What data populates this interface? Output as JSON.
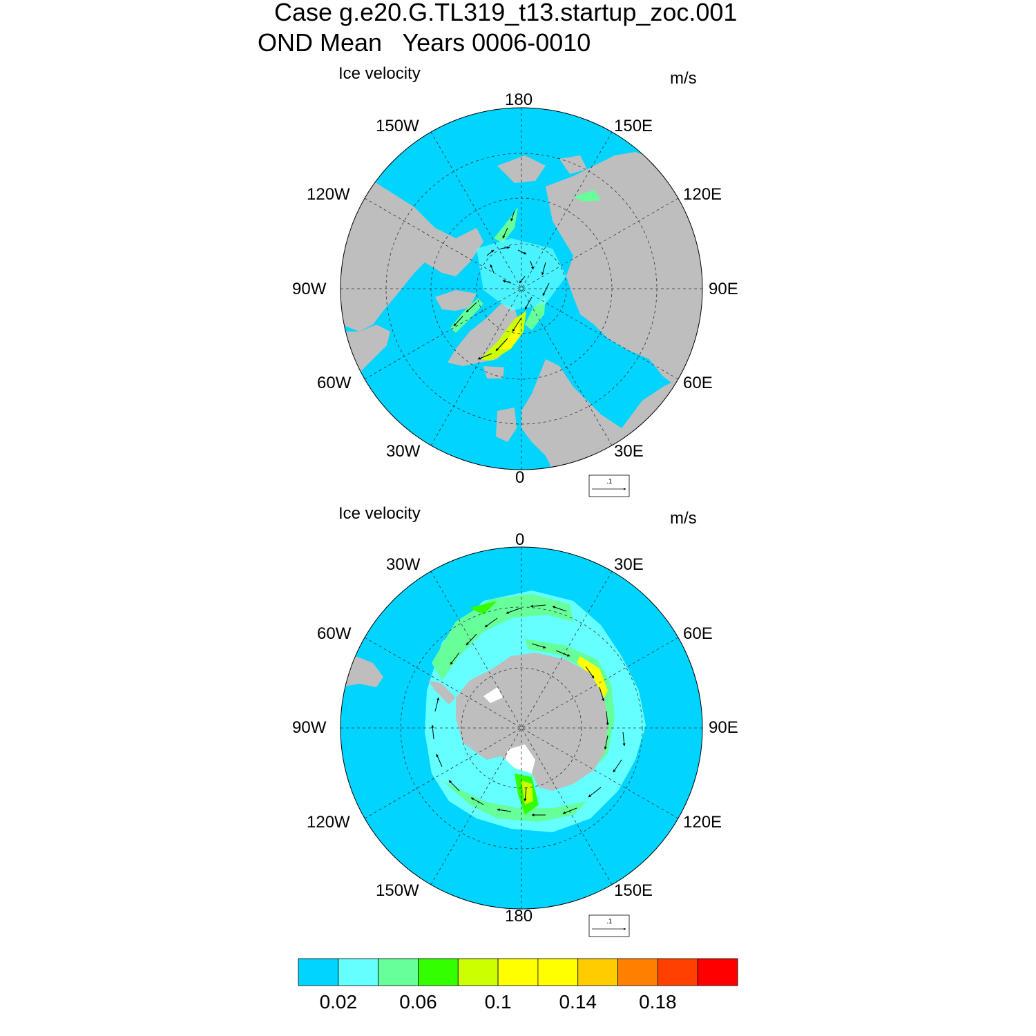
{
  "title": {
    "line1": "Case g.e20.G.TL319_t13.startup_zoc.001",
    "line2": "OND Mean   Years 0006-0010"
  },
  "panels": [
    {
      "name": "north",
      "variable_label": "Ice velocity",
      "units_label": "m/s",
      "lon_labels": {
        "top": "180",
        "bottom": "0",
        "left": "90W",
        "right": "90E",
        "top_left": "150W",
        "top_right": "150E",
        "upper_left": "120W",
        "upper_right": "120E",
        "lower_left": "60W",
        "lower_right": "60E",
        "bottom_left": "30W",
        "bottom_right": "30E"
      },
      "reference_vector_label": ".1"
    },
    {
      "name": "south",
      "variable_label": "Ice velocity",
      "units_label": "m/s",
      "lon_labels": {
        "top": "0",
        "bottom": "180",
        "left": "90W",
        "right": "90E",
        "top_left": "30W",
        "top_right": "30E",
        "upper_left": "60W",
        "upper_right": "60E",
        "lower_left": "120W",
        "lower_right": "120E",
        "bottom_left": "150W",
        "bottom_right": "150E"
      },
      "reference_vector_label": ".1"
    }
  ],
  "colorbar": {
    "colors": [
      "#00d4ff",
      "#66ffff",
      "#66ff99",
      "#33ff00",
      "#ccff00",
      "#ffff00",
      "#ffff00",
      "#ffcc00",
      "#ff8000",
      "#ff4000",
      "#ff0000"
    ],
    "tick_labels": [
      "0.02",
      "0.06",
      "0.1",
      "0.14",
      "0.18"
    ]
  },
  "colors": {
    "ocean": "#00d4ff",
    "land": "#bebebe",
    "ice_edge": "#66ffff",
    "frame": "#000000"
  }
}
